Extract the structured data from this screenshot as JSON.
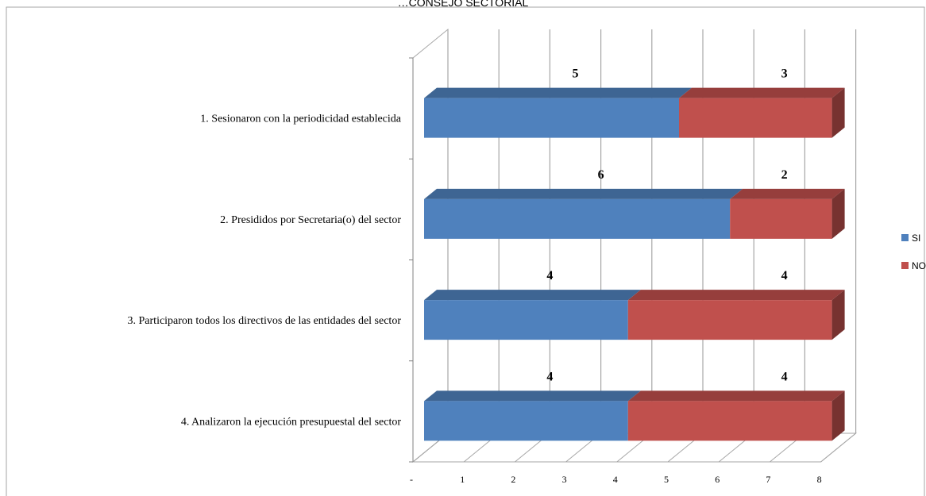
{
  "chart_data": {
    "type": "bar",
    "orientation": "horizontal",
    "stacked": true,
    "three_d": true,
    "title": "…CONSEJO SECTORIAL",
    "categories": [
      "1. Sesionaron con la periodicidad establecida",
      "2. Presididos por Secretaria(o) del sector",
      "3. Participaron todos los directivos de las entidades del sector",
      "4. Analizaron la ejecución presupuestal del sector"
    ],
    "series": [
      {
        "name": "SI",
        "color": "#4f81bd",
        "values": [
          5,
          6,
          4,
          4
        ]
      },
      {
        "name": "NO",
        "color": "#c0504d",
        "values": [
          3,
          2,
          4,
          4
        ]
      }
    ],
    "x_ticks": [
      "-",
      "1",
      "2",
      "3",
      "4",
      "5",
      "6",
      "7",
      "8"
    ],
    "xlim": [
      0,
      8
    ],
    "grid": true,
    "legend_position": "right"
  }
}
